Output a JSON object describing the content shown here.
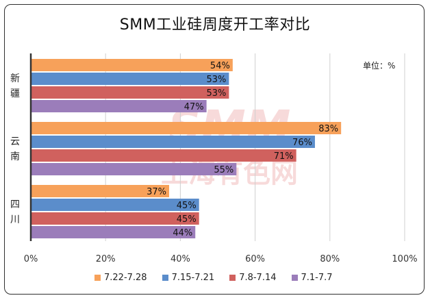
{
  "chart_data": {
    "type": "bar",
    "orientation": "horizontal",
    "title": "SMM工业硅周度开工率对比",
    "unit_label": "单位：%",
    "watermark": "SMM 上海有色网",
    "categories": [
      "新疆",
      "云南",
      "四川"
    ],
    "series": [
      {
        "name": "7.22-7.28",
        "color": "#F7A15A",
        "values": [
          54,
          83,
          37
        ]
      },
      {
        "name": "7.15-7.21",
        "color": "#5B8DCB",
        "values": [
          53,
          76,
          45
        ]
      },
      {
        "name": "7.8-7.14",
        "color": "#D0615E",
        "values": [
          53,
          71,
          45
        ]
      },
      {
        "name": "7.1-7.7",
        "color": "#9B7DBA",
        "values": [
          47,
          55,
          44
        ]
      }
    ],
    "xlim": [
      0,
      100
    ],
    "xticks": [
      "0%",
      "20%",
      "40%",
      "60%",
      "80%",
      "100%"
    ],
    "grid": true,
    "legend_position": "bottom"
  }
}
